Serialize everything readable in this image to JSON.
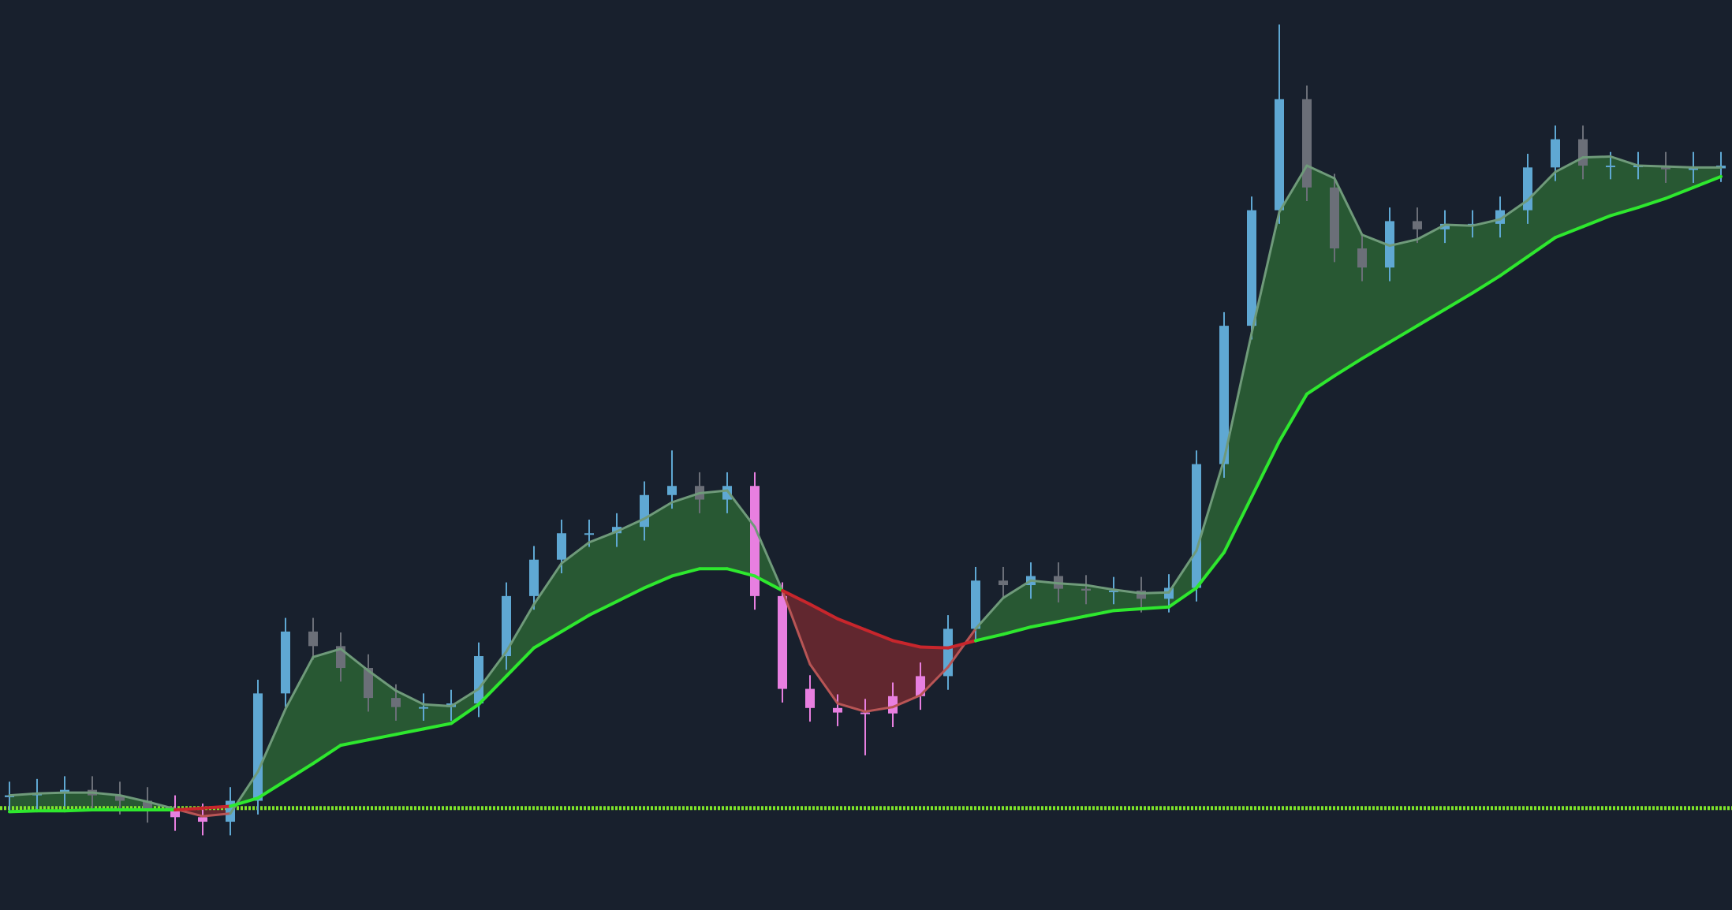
{
  "chart_data": {
    "type": "candlestick",
    "ylim": [
      0,
      100
    ],
    "open": [
      12.4,
      12.6,
      12.9,
      13.2,
      12.6,
      12.0,
      11.1,
      10.2,
      9.7,
      12.0,
      23.8,
      30.6,
      29.0,
      26.6,
      23.3,
      22.3,
      22.3,
      22.7,
      27.9,
      34.5,
      38.5,
      41.4,
      41.4,
      42.1,
      45.6,
      46.6,
      45.1,
      46.6,
      34.5,
      24.3,
      22.2,
      21.7,
      21.6,
      23.5,
      25.7,
      30.9,
      36.2,
      35.7,
      36.7,
      35.3,
      35.1,
      35.1,
      34.2,
      35.4,
      49.0,
      64.2,
      76.9,
      89.1,
      79.4,
      72.7,
      70.6,
      75.7,
      74.8,
      75.4,
      75.4,
      76.9,
      81.6,
      84.7,
      81.8,
      81.8,
      81.8,
      81.4,
      81.5
    ],
    "high": [
      14.1,
      14.4,
      14.7,
      14.7,
      14.1,
      13.5,
      12.6,
      11.7,
      13.5,
      25.3,
      32.1,
      32.1,
      30.5,
      28.1,
      24.8,
      23.8,
      24.2,
      29.4,
      36.0,
      40.0,
      42.9,
      42.9,
      43.6,
      47.1,
      50.5,
      48.1,
      48.1,
      48.1,
      36.0,
      25.8,
      23.7,
      23.2,
      25.0,
      27.2,
      32.4,
      37.7,
      37.7,
      38.2,
      38.2,
      36.8,
      36.6,
      36.6,
      36.9,
      50.5,
      65.7,
      78.4,
      97.3,
      90.6,
      80.9,
      74.2,
      77.2,
      77.2,
      76.9,
      76.9,
      78.4,
      83.1,
      86.2,
      86.2,
      83.3,
      83.3,
      83.3,
      83.3,
      83.3
    ],
    "low": [
      10.9,
      11.1,
      11.4,
      11.1,
      10.5,
      9.6,
      8.7,
      8.2,
      8.2,
      10.5,
      22.3,
      27.5,
      25.1,
      21.8,
      20.8,
      20.8,
      20.8,
      21.2,
      26.4,
      33.0,
      37.0,
      39.9,
      39.9,
      40.6,
      44.1,
      43.6,
      43.6,
      33.0,
      22.8,
      20.7,
      20.2,
      17.0,
      20.1,
      22.0,
      24.2,
      29.4,
      34.2,
      34.2,
      33.8,
      33.6,
      33.6,
      32.7,
      32.7,
      33.9,
      47.5,
      62.7,
      75.4,
      77.9,
      71.2,
      69.1,
      69.1,
      73.3,
      73.3,
      73.9,
      73.9,
      75.4,
      80.1,
      80.3,
      80.3,
      80.3,
      79.9,
      79.9,
      80.0
    ],
    "close": [
      12.6,
      12.9,
      13.2,
      12.6,
      12.0,
      11.1,
      10.2,
      9.7,
      12.0,
      23.8,
      30.6,
      29.0,
      26.6,
      23.3,
      22.3,
      22.3,
      22.7,
      27.9,
      34.5,
      38.5,
      41.4,
      41.4,
      42.1,
      45.6,
      46.6,
      45.1,
      46.6,
      34.5,
      24.3,
      22.2,
      21.7,
      21.6,
      23.5,
      25.7,
      30.9,
      36.2,
      35.7,
      36.7,
      35.3,
      35.1,
      35.1,
      34.2,
      35.4,
      49.0,
      64.2,
      76.9,
      89.1,
      79.4,
      72.7,
      70.6,
      75.7,
      74.8,
      75.4,
      75.4,
      76.9,
      81.6,
      84.7,
      81.8,
      81.8,
      81.8,
      81.4,
      81.5,
      81.8
    ],
    "ma_fast": [
      12.6,
      12.8,
      12.9,
      12.9,
      12.6,
      11.9,
      11.1,
      10.3,
      10.6,
      15.2,
      22.1,
      27.8,
      28.7,
      26.3,
      24.1,
      22.6,
      22.4,
      24.3,
      28.4,
      33.6,
      38.1,
      40.4,
      41.6,
      43.0,
      44.8,
      45.8,
      46.1,
      42.1,
      35.1,
      27.0,
      22.7,
      21.8,
      22.3,
      23.6,
      26.7,
      30.9,
      34.3,
      36.2,
      35.9,
      35.7,
      35.2,
      34.8,
      34.9,
      39.5,
      49.5,
      63.4,
      76.7,
      81.8,
      80.4,
      74.2,
      73.0,
      73.7,
      75.3,
      75.2,
      75.9,
      78.0,
      81.1,
      82.7,
      82.8,
      81.8,
      81.7,
      81.6,
      81.6
    ],
    "ma_slow": [
      10.8,
      10.9,
      10.9,
      11.0,
      11.0,
      11.0,
      11.0,
      11.2,
      11.4,
      12.3,
      14.2,
      16.1,
      18.1,
      18.7,
      19.3,
      19.9,
      20.5,
      22.6,
      25.7,
      28.8,
      30.6,
      32.4,
      33.9,
      35.4,
      36.7,
      37.5,
      37.5,
      36.7,
      35.1,
      33.6,
      32.0,
      30.8,
      29.6,
      28.9,
      28.8,
      29.6,
      30.3,
      31.1,
      31.7,
      32.3,
      32.9,
      33.1,
      33.3,
      35.4,
      39.3,
      45.4,
      51.5,
      56.7,
      58.7,
      60.6,
      62.4,
      64.2,
      66.0,
      67.8,
      69.7,
      71.8,
      73.9,
      75.1,
      76.3,
      77.2,
      78.2,
      79.4,
      80.6
    ],
    "level": 11.2,
    "up_color": "#5fa8d3",
    "down_color": "#6b6f78",
    "bear_color": "#e87fe0",
    "bull_fill": "#2e6b35",
    "bear_fill": "#7a2a30",
    "slow_bull_color": "#2ee82e",
    "slow_bear_color": "#c8262c",
    "fast_bull_color": "#6f9a7a",
    "fast_bear_color": "#b85555",
    "level_color": "#7fe52a"
  }
}
